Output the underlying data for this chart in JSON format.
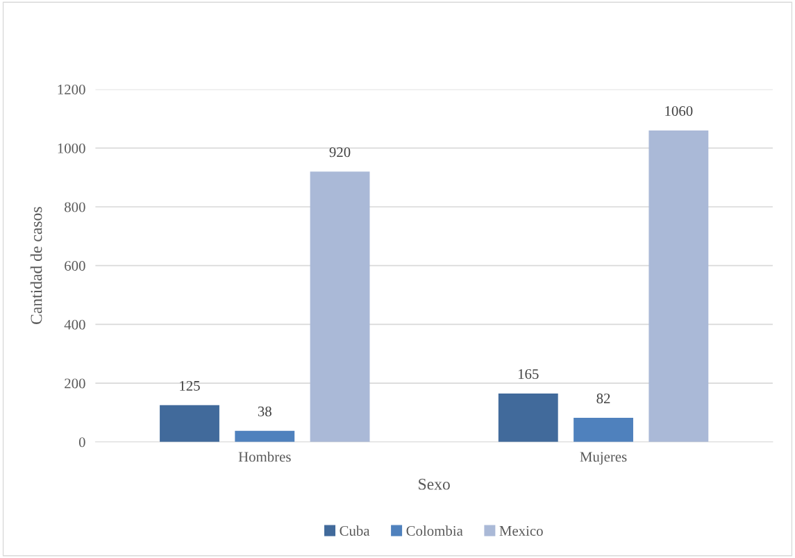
{
  "chart_data": {
    "type": "bar",
    "xlabel": "Sexo",
    "ylabel": "Cantidad de casos",
    "categories": [
      "Hombres",
      "Mujeres"
    ],
    "series": [
      {
        "name": "Cuba",
        "color": "#416a9b",
        "values": [
          125,
          165
        ]
      },
      {
        "name": "Colombia",
        "color": "#4f81bd",
        "values": [
          38,
          82
        ]
      },
      {
        "name": "Mexico",
        "color": "#aab9d7",
        "values": [
          920,
          1060
        ]
      }
    ],
    "ylim": [
      0,
      1200
    ],
    "yticks": [
      0,
      200,
      400,
      600,
      800,
      1000,
      1200
    ],
    "grid": "y",
    "legend": "bottom",
    "data_labels": true
  }
}
